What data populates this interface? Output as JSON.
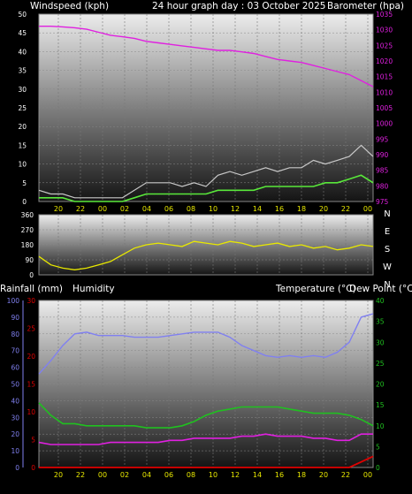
{
  "header": {
    "wind_label": "Windspeed (kph)",
    "title": "24 hour graph day : 03 October 2025",
    "baro_label": "Barometer (hpa)"
  },
  "lower_header": {
    "rain_label": "Rainfall (mm)",
    "humidity_label": "Humidity",
    "temp_label": "Temperature (°C)",
    "dew_label": "Dew Point (°C)"
  },
  "colors": {
    "wind": "#59e83a",
    "gust": "#c8c8c8",
    "barometer": "#e020e0",
    "direction": "#e8e800",
    "humidity": "#8080f0",
    "temperature": "#20c020",
    "dew_point": "#e020e0",
    "rain": "#e00000",
    "x_ticks": "#e8e800"
  },
  "x_ticks": [
    "20",
    "22",
    "00",
    "02",
    "04",
    "06",
    "08",
    "10",
    "12",
    "14",
    "16",
    "18",
    "20",
    "22",
    "00"
  ],
  "chart_data": [
    {
      "type": "line",
      "title": "24 hour graph day : 03 October 2025",
      "x_tick_labels": [
        "20",
        "22",
        "00",
        "02",
        "04",
        "06",
        "08",
        "10",
        "12",
        "14",
        "16",
        "18",
        "20",
        "22",
        "00"
      ],
      "y_left": {
        "label": "Windspeed (kph)",
        "range": [
          0,
          50
        ],
        "ticks": [
          "0",
          "5",
          "10",
          "15",
          "20",
          "25",
          "30",
          "35",
          "40",
          "45",
          "50"
        ]
      },
      "y_right": {
        "label": "Barometer (hpa)",
        "range": [
          973,
          1035
        ],
        "ticks": [
          "975",
          "980",
          "985",
          "990",
          "995",
          "1000",
          "1005",
          "1010",
          "1015",
          "1020",
          "1025",
          "1030",
          "1035"
        ]
      },
      "grid": true,
      "series": [
        {
          "name": "Barometer (hpa)",
          "axis": "right",
          "x": [
            0,
            1,
            2,
            3,
            4,
            5,
            6,
            7,
            8,
            9,
            10,
            11,
            12,
            13,
            14,
            15,
            16,
            17,
            18,
            19,
            20,
            21,
            22,
            23,
            24,
            25,
            26,
            27,
            28
          ],
          "values": [
            1031,
            1031,
            1030.8,
            1030.5,
            1030,
            1029,
            1028,
            1027.5,
            1027,
            1026,
            1025.5,
            1025,
            1024.5,
            1024,
            1023.5,
            1023,
            1023,
            1022.5,
            1022,
            1021,
            1020,
            1019.5,
            1019,
            1018,
            1017,
            1016,
            1015,
            1013,
            1011
          ]
        },
        {
          "name": "Windspeed (kph)",
          "axis": "left",
          "x": [
            0,
            1,
            2,
            3,
            4,
            5,
            6,
            7,
            8,
            9,
            10,
            11,
            12,
            13,
            14,
            15,
            16,
            17,
            18,
            19,
            20,
            21,
            22,
            23,
            24,
            25,
            26,
            27,
            28
          ],
          "values": [
            1,
            1,
            1,
            0,
            0,
            0,
            0,
            0,
            1,
            2,
            2,
            2,
            2,
            2,
            2,
            3,
            3,
            3,
            3,
            4,
            4,
            4,
            4,
            4,
            5,
            5,
            6,
            7,
            5
          ]
        },
        {
          "name": "Gust",
          "axis": "left",
          "x": [
            0,
            1,
            2,
            3,
            4,
            5,
            6,
            7,
            8,
            9,
            10,
            11,
            12,
            13,
            14,
            15,
            16,
            17,
            18,
            19,
            20,
            21,
            22,
            23,
            24,
            25,
            26,
            27,
            28
          ],
          "values": [
            3,
            2,
            2,
            1,
            1,
            1,
            1,
            1,
            3,
            5,
            5,
            5,
            4,
            5,
            4,
            7,
            8,
            7,
            8,
            9,
            8,
            9,
            9,
            11,
            10,
            11,
            12,
            15,
            12
          ]
        }
      ]
    },
    {
      "type": "line",
      "title": "",
      "y_left": {
        "label": "",
        "range": [
          0,
          360
        ],
        "ticks": [
          "0",
          "90",
          "180",
          "270",
          "360"
        ]
      },
      "y_right_labels": [
        "N",
        "W",
        "S",
        "E",
        "N"
      ],
      "grid": true,
      "series": [
        {
          "name": "Wind direction",
          "axis": "left",
          "x": [
            0,
            1,
            2,
            3,
            4,
            5,
            6,
            7,
            8,
            9,
            10,
            11,
            12,
            13,
            14,
            15,
            16,
            17,
            18,
            19,
            20,
            21,
            22,
            23,
            24,
            25,
            26,
            27,
            28
          ],
          "values": [
            110,
            60,
            40,
            30,
            40,
            60,
            80,
            120,
            160,
            180,
            190,
            180,
            170,
            200,
            190,
            180,
            200,
            190,
            170,
            180,
            190,
            170,
            180,
            160,
            170,
            150,
            160,
            180,
            170
          ]
        }
      ]
    },
    {
      "type": "line",
      "title": "",
      "x_tick_labels": [
        "20",
        "22",
        "00",
        "02",
        "04",
        "06",
        "08",
        "10",
        "12",
        "14",
        "16",
        "18",
        "20",
        "22",
        "00"
      ],
      "y_humidity": {
        "label": "Humidity",
        "range": [
          0,
          100
        ],
        "ticks": [
          "0",
          "10",
          "20",
          "30",
          "40",
          "50",
          "60",
          "70",
          "80",
          "90",
          "100"
        ]
      },
      "y_rain": {
        "label": "Rainfall (mm)",
        "range": [
          0,
          30
        ],
        "ticks": [
          "0",
          "5",
          "10",
          "15",
          "20",
          "25",
          "30"
        ]
      },
      "y_temp": {
        "label": "Temperature (°C)",
        "range": [
          0,
          40
        ],
        "ticks": [
          "0",
          "5",
          "10",
          "15",
          "20",
          "25",
          "30",
          "35",
          "40"
        ]
      },
      "grid": true,
      "series": [
        {
          "name": "Humidity",
          "axis": "humidity",
          "x": [
            0,
            1,
            2,
            3,
            4,
            5,
            6,
            7,
            8,
            9,
            10,
            11,
            12,
            13,
            14,
            15,
            16,
            17,
            18,
            19,
            20,
            21,
            22,
            23,
            24,
            25,
            26,
            27,
            28
          ],
          "values": [
            56,
            64,
            73,
            80,
            81,
            79,
            79,
            79,
            78,
            78,
            78,
            79,
            80,
            81,
            81,
            81,
            78,
            73,
            70,
            67,
            66,
            67,
            66,
            67,
            66,
            69,
            75,
            90,
            92
          ]
        },
        {
          "name": "Temperature (°C)",
          "axis": "temp",
          "x": [
            0,
            1,
            2,
            3,
            4,
            5,
            6,
            7,
            8,
            9,
            10,
            11,
            12,
            13,
            14,
            15,
            16,
            17,
            18,
            19,
            20,
            21,
            22,
            23,
            24,
            25,
            26,
            27,
            28
          ],
          "values": [
            15.5,
            12.5,
            10.5,
            10.5,
            10,
            10,
            10,
            10,
            10,
            9.5,
            9.5,
            9.5,
            10,
            11,
            12.5,
            13.5,
            14,
            14.5,
            14.5,
            14.5,
            14.5,
            14,
            13.5,
            13,
            13,
            13,
            12.5,
            11.5,
            10
          ]
        },
        {
          "name": "Dew Point (°C)",
          "axis": "temp",
          "x": [
            0,
            1,
            2,
            3,
            4,
            5,
            6,
            7,
            8,
            9,
            10,
            11,
            12,
            13,
            14,
            15,
            16,
            17,
            18,
            19,
            20,
            21,
            22,
            23,
            24,
            25,
            26,
            27,
            28
          ],
          "values": [
            6,
            5.5,
            5.5,
            5.5,
            5.5,
            5.5,
            6,
            6,
            6,
            6,
            6,
            6.5,
            6.5,
            7,
            7,
            7,
            7,
            7.5,
            7.5,
            8,
            7.5,
            7.5,
            7.5,
            7,
            7,
            6.5,
            6.5,
            8,
            8
          ]
        },
        {
          "name": "Rainfall (mm)",
          "axis": "rain",
          "x": [
            0,
            1,
            2,
            3,
            4,
            5,
            6,
            7,
            8,
            9,
            10,
            11,
            12,
            13,
            14,
            15,
            16,
            17,
            18,
            19,
            20,
            21,
            22,
            23,
            24,
            25,
            26,
            27,
            28
          ],
          "values": [
            0,
            0,
            0,
            0,
            0,
            0,
            0,
            0,
            0,
            0,
            0,
            0,
            0,
            0,
            0,
            0,
            0,
            0,
            0,
            0,
            0,
            0,
            0,
            0,
            0,
            0,
            0,
            1,
            2
          ]
        }
      ]
    }
  ]
}
